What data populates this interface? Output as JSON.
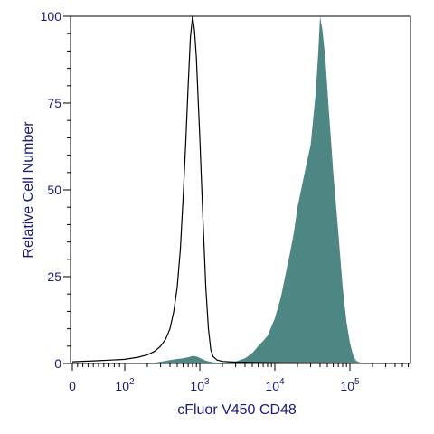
{
  "chart_data": {
    "type": "area",
    "xlabel": "cFluor V450 CD48",
    "ylabel": "Relative Cell Number",
    "x_scale": "biexponential",
    "xlim": [
      0,
      500000
    ],
    "ylim": [
      0,
      100
    ],
    "x_ticks": [
      {
        "value": 0,
        "label": "0"
      },
      {
        "value": 100,
        "label": "10",
        "exp": "2"
      },
      {
        "value": 1000,
        "label": "10",
        "exp": "3"
      },
      {
        "value": 10000,
        "label": "10",
        "exp": "4"
      },
      {
        "value": 100000,
        "label": "10",
        "exp": "5"
      }
    ],
    "y_ticks": [
      {
        "value": 0,
        "label": "0"
      },
      {
        "value": 25,
        "label": "25"
      },
      {
        "value": 50,
        "label": "50"
      },
      {
        "value": 75,
        "label": "75"
      },
      {
        "value": 100,
        "label": "100"
      }
    ],
    "series": [
      {
        "style": "outline",
        "color": "#000000",
        "points": [
          [
            0,
            0.5
          ],
          [
            50,
            0.8
          ],
          [
            100,
            1.2
          ],
          [
            150,
            1.8
          ],
          [
            200,
            2.5
          ],
          [
            250,
            3.5
          ],
          [
            300,
            5
          ],
          [
            350,
            7
          ],
          [
            400,
            10
          ],
          [
            450,
            15
          ],
          [
            500,
            22
          ],
          [
            550,
            33
          ],
          [
            600,
            48
          ],
          [
            650,
            64
          ],
          [
            700,
            80
          ],
          [
            750,
            94
          ],
          [
            800,
            100
          ],
          [
            850,
            96
          ],
          [
            900,
            88
          ],
          [
            1000,
            65
          ],
          [
            1100,
            42
          ],
          [
            1200,
            22
          ],
          [
            1300,
            10
          ],
          [
            1400,
            4
          ],
          [
            1500,
            2
          ],
          [
            1700,
            1
          ],
          [
            2000,
            0.6
          ],
          [
            3000,
            0.4
          ],
          [
            5000,
            0.3
          ],
          [
            10000,
            0.2
          ],
          [
            100000,
            0.1
          ],
          [
            400000,
            0.1
          ]
        ]
      },
      {
        "style": "filled",
        "color": "#4e8684",
        "points": [
          [
            200,
            0
          ],
          [
            300,
            0.5
          ],
          [
            400,
            1
          ],
          [
            500,
            1.3
          ],
          [
            600,
            1.5
          ],
          [
            700,
            1.8
          ],
          [
            800,
            2.2
          ],
          [
            900,
            2.0
          ],
          [
            1000,
            1.6
          ],
          [
            1200,
            0.8
          ],
          [
            1500,
            0.3
          ],
          [
            2000,
            0.2
          ],
          [
            3000,
            0.6
          ],
          [
            4000,
            1.5
          ],
          [
            5000,
            3
          ],
          [
            6000,
            5
          ],
          [
            7000,
            6.5
          ],
          [
            8000,
            8
          ],
          [
            10000,
            13
          ],
          [
            12000,
            19
          ],
          [
            14000,
            26
          ],
          [
            16000,
            32
          ],
          [
            18000,
            38
          ],
          [
            20000,
            45
          ],
          [
            25000,
            55
          ],
          [
            30000,
            63
          ],
          [
            35000,
            78
          ],
          [
            38000,
            90
          ],
          [
            40000,
            100
          ],
          [
            43000,
            96
          ],
          [
            47000,
            88
          ],
          [
            52000,
            74
          ],
          [
            60000,
            55
          ],
          [
            70000,
            38
          ],
          [
            80000,
            22
          ],
          [
            90000,
            12
          ],
          [
            100000,
            6
          ],
          [
            110000,
            2.5
          ],
          [
            120000,
            0.8
          ],
          [
            140000,
            0.2
          ],
          [
            200000,
            0
          ]
        ]
      }
    ]
  }
}
